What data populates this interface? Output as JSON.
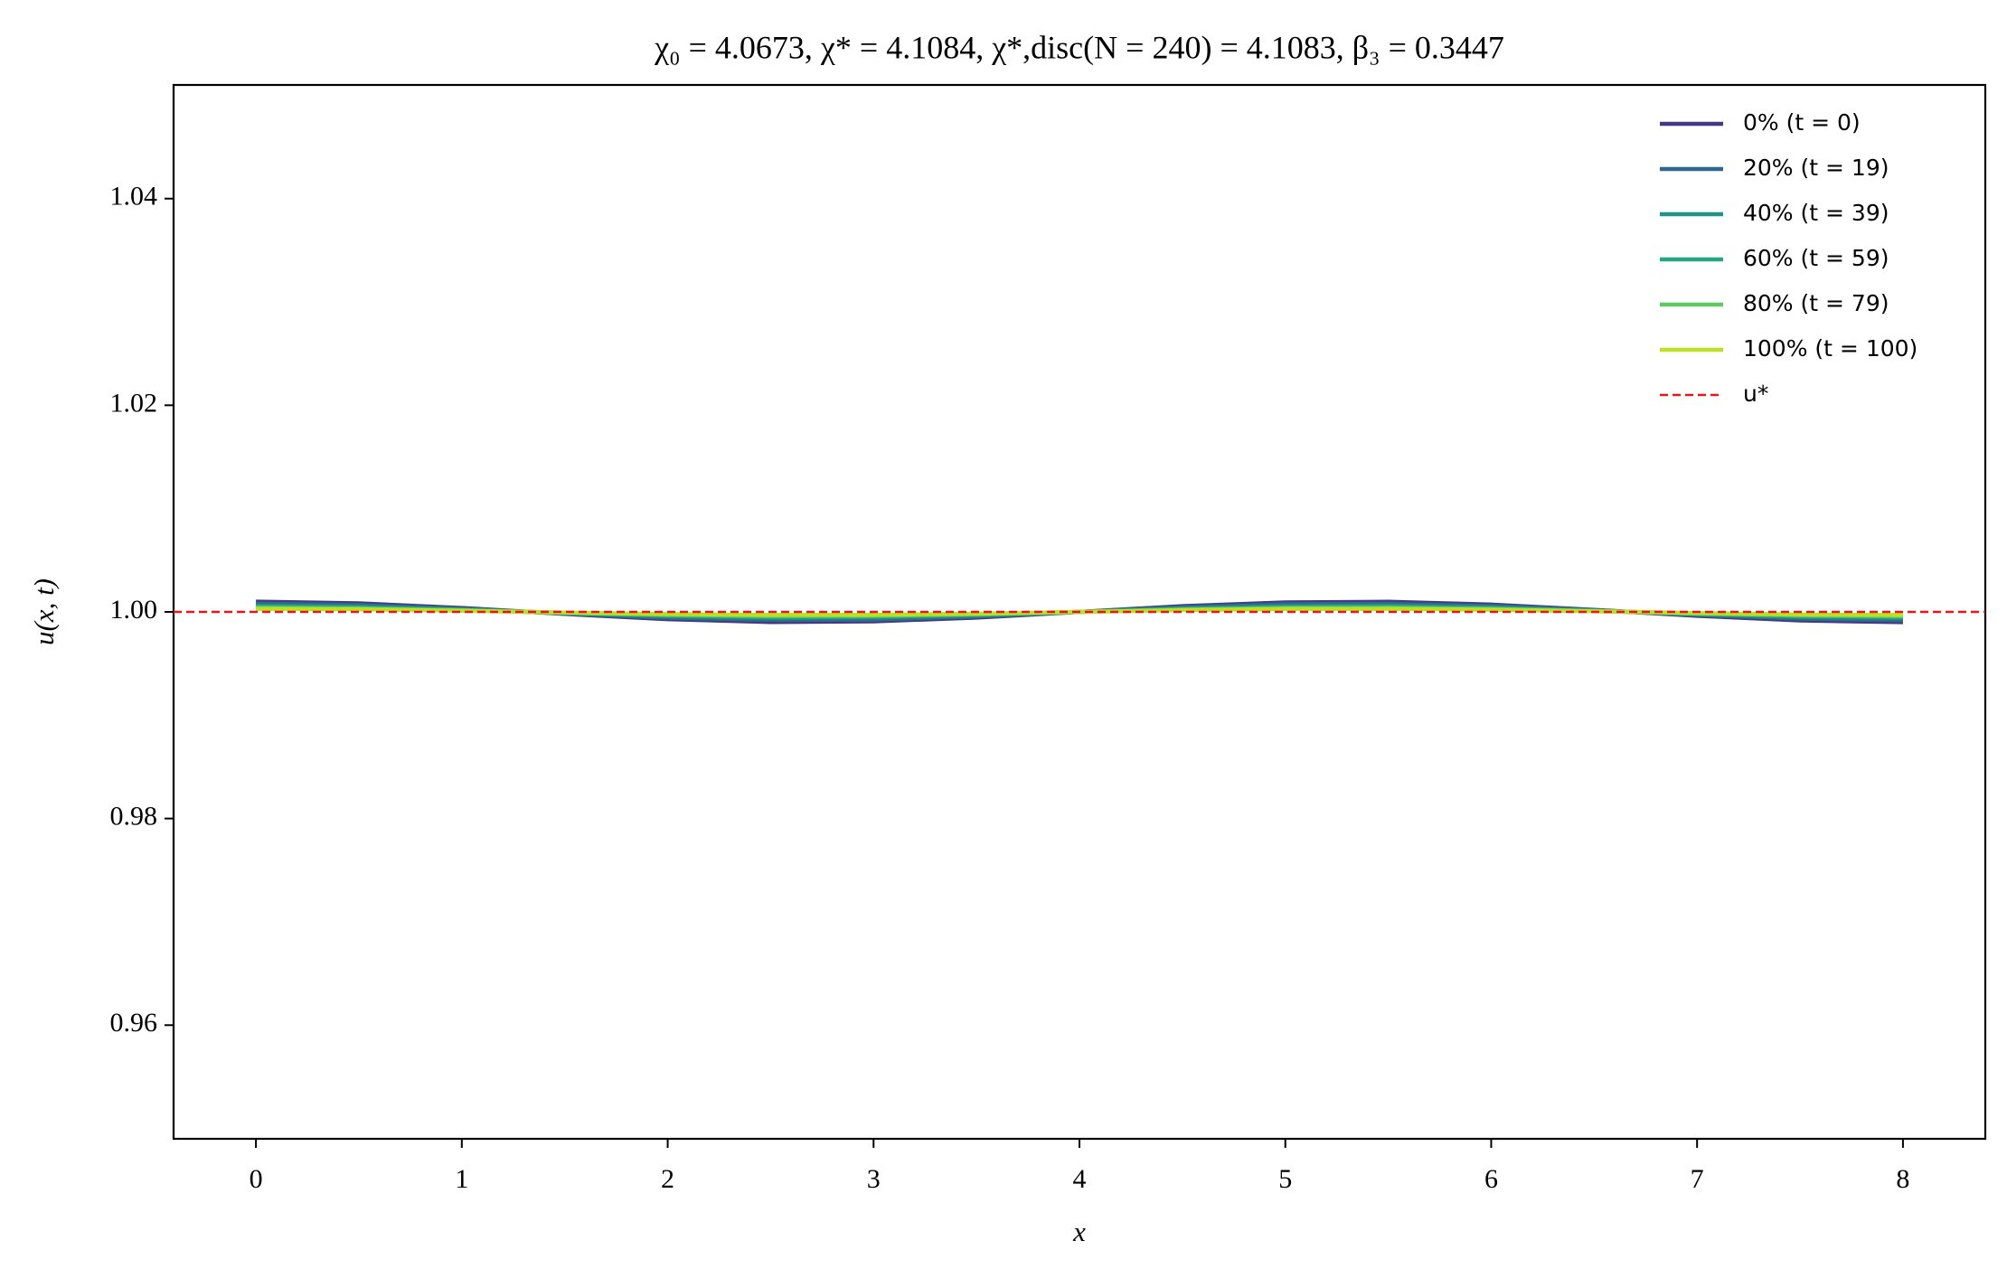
{
  "chart_data": {
    "type": "line",
    "title": "χ₀ = 4.0673,  χ* = 4.1084,  χ*,disc(N = 240) = 4.1083,  β₃ = 0.3447",
    "xlabel": "x",
    "ylabel": "u(x, t)",
    "x": [
      0,
      0.5,
      1,
      1.5,
      2,
      2.5,
      3,
      3.5,
      4,
      4.5,
      5,
      5.5,
      6,
      6.5,
      7,
      7.5,
      8
    ],
    "series": [
      {
        "name": "0% (t = 0)",
        "color": "#443983",
        "values": [
          1.001,
          1.00083,
          1.00038,
          0.9998,
          0.99929,
          0.99902,
          0.99908,
          0.99944,
          1,
          1.00056,
          1.00092,
          1.00098,
          1.00071,
          1.0002,
          0.99962,
          0.99917,
          0.999
        ]
      },
      {
        "name": "20% (t = 19)",
        "color": "#31688e",
        "values": [
          1.0008,
          1.00066,
          1.0003,
          0.99984,
          0.99943,
          0.99922,
          0.99926,
          0.99955,
          1,
          1.00045,
          1.00074,
          1.00078,
          1.00057,
          1.00016,
          0.9997,
          0.99934,
          0.9992
        ]
      },
      {
        "name": "40% (t = 39)",
        "color": "#21918c",
        "values": [
          1.0006,
          1.0005,
          1.00023,
          0.99988,
          0.99957,
          0.99941,
          0.99945,
          0.99966,
          1,
          1.00034,
          1.00055,
          1.00059,
          1.00043,
          1.00012,
          0.99977,
          0.9995,
          0.9994
        ]
      },
      {
        "name": "60% (t = 59)",
        "color": "#22a884",
        "values": [
          1.0005,
          1.00042,
          1.00019,
          0.9999,
          0.99965,
          0.99951,
          0.99954,
          0.99972,
          1,
          1.00028,
          1.00046,
          1.00049,
          1.00036,
          1.0001,
          0.99981,
          0.99959,
          0.9995
        ]
      },
      {
        "name": "80% (t = 79)",
        "color": "#5ec962",
        "values": [
          1.0004,
          1.00033,
          1.00015,
          0.99992,
          0.99972,
          0.99961,
          0.99963,
          0.99978,
          1,
          1.00022,
          1.00037,
          1.00039,
          1.00028,
          1.00008,
          0.99985,
          0.99967,
          0.9996
        ]
      },
      {
        "name": "100% (t = 100)",
        "color": "#bddf26",
        "values": [
          1.0003,
          1.00025,
          1.00011,
          0.99994,
          0.99979,
          0.99971,
          0.99972,
          0.99983,
          1,
          1.00017,
          1.00028,
          1.00029,
          1.00021,
          1.00006,
          0.99989,
          0.99975,
          0.9997
        ]
      }
    ],
    "hline": {
      "name": "u*",
      "value": 1,
      "color": "#e8161b"
    },
    "xlim": [
      -0.4,
      8.4
    ],
    "xticks": [
      0,
      1,
      2,
      3,
      4,
      5,
      6,
      7,
      8
    ],
    "ylim": [
      0.949,
      1.051
    ],
    "yticks": [
      0.96,
      0.98,
      {
        "value": 1,
        "label": "1.00"
      },
      1.02,
      1.04
    ],
    "grid": false,
    "legend": "upper right"
  }
}
